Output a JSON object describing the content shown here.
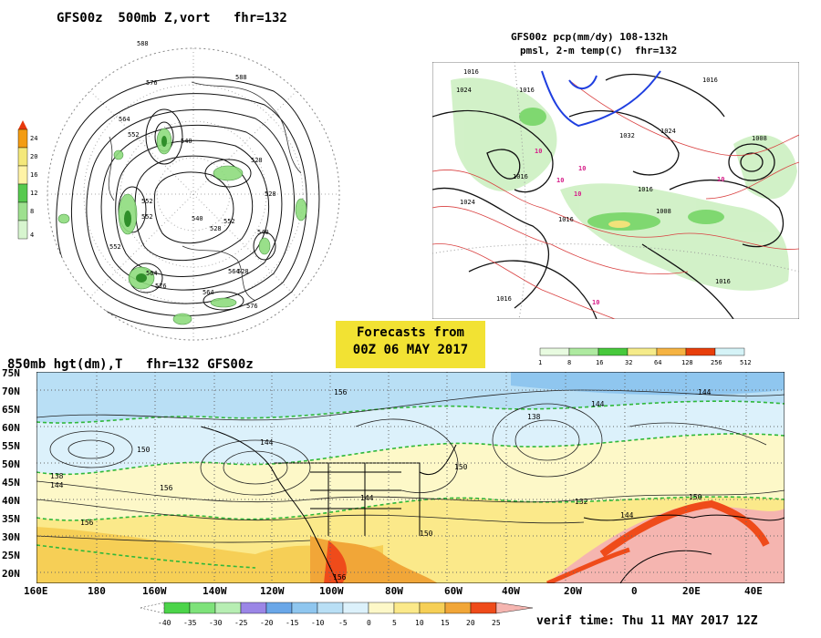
{
  "panel_500mb": {
    "title": "GFS00z  500mb Z,vort   fhr=132",
    "contour_labels": [
      "588",
      "588",
      "576",
      "564",
      "552",
      "540",
      "528",
      "552",
      "540",
      "552",
      "528",
      "552",
      "564",
      "576",
      "564",
      "576",
      "564",
      "528",
      "540",
      "552",
      "528"
    ],
    "colorbar": {
      "labels": [
        "24",
        "20",
        "16",
        "12",
        "8",
        "4"
      ],
      "colors": [
        "#e8380b",
        "#f39c12",
        "#f4e87a",
        "#57c94f",
        "#9ee08f",
        "#d7f5cf"
      ]
    }
  },
  "panel_precip": {
    "title_line1": "GFS00z pcp(mm/dy) 108-132h",
    "title_line2": "pmsl, 2-m temp(C)  fhr=132",
    "isobar_labels": [
      "1016",
      "1024",
      "1016",
      "1032",
      "1024",
      "1008",
      "1016",
      "1016",
      "1024",
      "1016",
      "1008",
      "1016",
      "1016",
      "1016"
    ],
    "temp_labels": [
      "10",
      "10",
      "10",
      "10",
      "10",
      "10"
    ],
    "colorbar": {
      "labels": [
        "1",
        "8",
        "16",
        "32",
        "64",
        "128",
        "256",
        "512"
      ],
      "colors": [
        "#e8fbe0",
        "#aeeaa0",
        "#47c93c",
        "#f5eb8a",
        "#f5b342",
        "#f08a00",
        "#e83f0b",
        "#d5f3f7"
      ]
    }
  },
  "banner": {
    "line1": "Forecasts from",
    "line2": "00Z 06 MAY 2017"
  },
  "panel_850mb": {
    "title": "850mb hgt(dm),T   fhr=132 GFS00z",
    "lat_labels": [
      "75N",
      "70N",
      "65N",
      "60N",
      "55N",
      "50N",
      "45N",
      "40N",
      "35N",
      "30N",
      "25N",
      "20N"
    ],
    "lon_labels": [
      "160E",
      "180",
      "160W",
      "140W",
      "120W",
      "100W",
      "80W",
      "60W",
      "40W",
      "20W",
      "0",
      "20E",
      "40E"
    ],
    "contour_labels": [
      "138",
      "144",
      "150",
      "156",
      "156",
      "144",
      "156",
      "150",
      "144",
      "138",
      "144",
      "132",
      "150",
      "144",
      "150",
      "156",
      "144"
    ],
    "colorbar": {
      "labels": [
        "-40",
        "-35",
        "-30",
        "-25",
        "-20",
        "-15",
        "-10",
        "-5",
        "0",
        "5",
        "10",
        "15",
        "20",
        "25"
      ],
      "colors": [
        "#4cd44a",
        "#7ee27a",
        "#b7eeb3",
        "#9b86e6",
        "#6aa7e8",
        "#8fc6ef",
        "#b9dff5",
        "#dcf1fb",
        "#fdf8c8",
        "#fbe98a",
        "#f6cf56",
        "#f1a638",
        "#ef4b1a",
        "#f5b5b0"
      ]
    }
  },
  "verif": "verif time: Thu 11 MAY 2017 12Z"
}
